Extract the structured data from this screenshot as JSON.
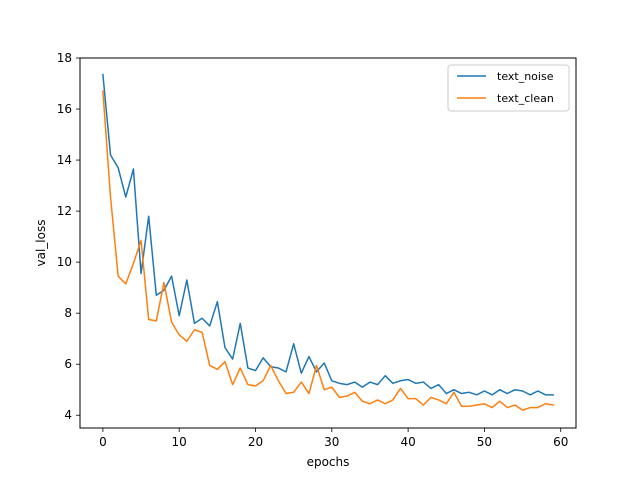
{
  "chart_data": {
    "type": "line",
    "title": "",
    "xlabel": "epochs",
    "ylabel": "val_loss",
    "xlim": [
      -3,
      62
    ],
    "ylim": [
      3.5,
      18
    ],
    "x_ticks": [
      0,
      10,
      20,
      30,
      40,
      50,
      60
    ],
    "y_ticks": [
      4,
      6,
      8,
      10,
      12,
      14,
      16,
      18
    ],
    "grid": false,
    "legend_position": "top-right",
    "x": [
      0,
      1,
      2,
      3,
      4,
      5,
      6,
      7,
      8,
      9,
      10,
      11,
      12,
      13,
      14,
      15,
      16,
      17,
      18,
      19,
      20,
      21,
      22,
      23,
      24,
      25,
      26,
      27,
      28,
      29,
      30,
      31,
      32,
      33,
      34,
      35,
      36,
      37,
      38,
      39,
      40,
      41,
      42,
      43,
      44,
      45,
      46,
      47,
      48,
      49,
      50,
      51,
      52,
      53,
      54,
      55,
      56,
      57,
      58,
      59
    ],
    "series": [
      {
        "name": "text_noise",
        "color": "#1f77b4",
        "values": [
          17.35,
          14.2,
          13.7,
          12.55,
          13.65,
          9.55,
          11.8,
          8.7,
          8.9,
          9.45,
          7.9,
          9.3,
          7.6,
          7.8,
          7.5,
          8.45,
          6.65,
          6.2,
          7.6,
          5.85,
          5.75,
          6.25,
          5.9,
          5.85,
          5.7,
          6.8,
          5.65,
          6.3,
          5.7,
          6.05,
          5.35,
          5.25,
          5.2,
          5.3,
          5.1,
          5.3,
          5.2,
          5.55,
          5.25,
          5.35,
          5.4,
          5.25,
          5.3,
          5.05,
          5.2,
          4.85,
          5.0,
          4.85,
          4.9,
          4.8,
          4.95,
          4.8,
          5.0,
          4.85,
          5.0,
          4.95,
          4.8,
          4.95,
          4.8,
          4.8
        ]
      },
      {
        "name": "text_clean",
        "color": "#ff7f0e",
        "values": [
          16.7,
          12.55,
          9.45,
          9.15,
          9.95,
          10.85,
          7.75,
          7.7,
          9.2,
          7.65,
          7.15,
          6.9,
          7.35,
          7.25,
          5.95,
          5.8,
          6.1,
          5.2,
          5.85,
          5.2,
          5.15,
          5.35,
          5.95,
          5.35,
          4.85,
          4.9,
          5.3,
          4.85,
          5.95,
          5.0,
          5.1,
          4.7,
          4.75,
          4.9,
          4.55,
          4.45,
          4.6,
          4.45,
          4.6,
          5.05,
          4.65,
          4.65,
          4.4,
          4.7,
          4.6,
          4.45,
          4.9,
          4.35,
          4.35,
          4.4,
          4.45,
          4.3,
          4.55,
          4.3,
          4.4,
          4.2,
          4.3,
          4.3,
          4.45,
          4.4
        ]
      }
    ]
  }
}
